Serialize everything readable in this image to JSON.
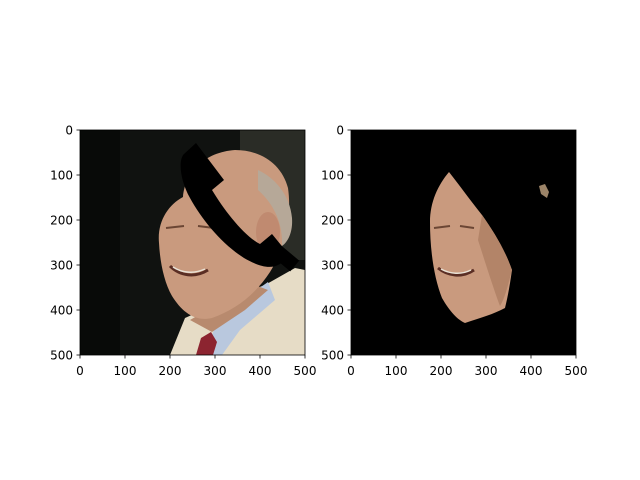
{
  "figure": {
    "panels": [
      {
        "id": "original",
        "description_icon": "portrait-photo-with-phone-occlusion",
        "xticks": [
          "0",
          "100",
          "200",
          "300",
          "400",
          "500"
        ],
        "yticks": [
          "0",
          "100",
          "200",
          "300",
          "400",
          "500"
        ]
      },
      {
        "id": "masked",
        "description_icon": "face-segmentation-mask",
        "xticks": [
          "0",
          "100",
          "200",
          "300",
          "400",
          "500"
        ],
        "yticks": [
          "0",
          "100",
          "200",
          "300",
          "400",
          "500"
        ]
      }
    ],
    "colors": {
      "background_dark": "#101210",
      "skin": "#c99a7e",
      "jacket": "#e6dcc6",
      "shirt": "#b9c8de",
      "tie": "#8c2430",
      "hair": "#b6a898",
      "mask_bg": "#000000"
    }
  }
}
